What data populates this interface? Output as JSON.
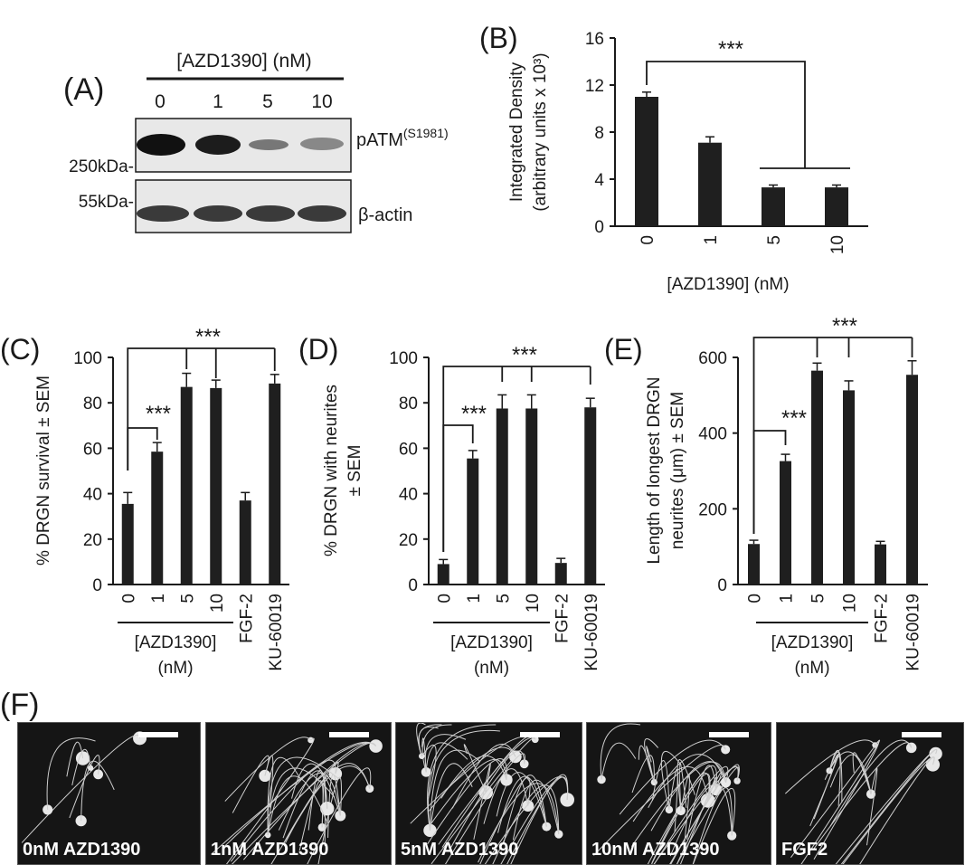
{
  "panels": {
    "A": {
      "letter": "(A)",
      "header": "[AZD1390] (nM)",
      "lanes": [
        "0",
        "1",
        "5",
        "10"
      ],
      "blots": [
        {
          "marker": "250kDa-",
          "label": "pATM",
          "label_sup": "(S1981)"
        },
        {
          "marker": "55kDa-",
          "label": "β-actin"
        }
      ]
    },
    "F": {
      "letter": "(F)",
      "captions": [
        "0nM AZD1390",
        "1nM AZD1390",
        "5nM AZD1390",
        "10nM AZD1390",
        "FGF2"
      ]
    }
  },
  "chart_data": [
    {
      "panel": "(B)",
      "type": "bar",
      "categories": [
        "0",
        "1",
        "5",
        "10"
      ],
      "values": [
        11.0,
        7.1,
        3.3,
        3.3
      ],
      "errors": [
        0.4,
        0.5,
        0.2,
        0.2
      ],
      "ylabel": "Integrated Density (arbitrary units x 10³)",
      "ylabel_lines": [
        "Integrated Density",
        "(arbitrary units x 10³)"
      ],
      "xlabel": "[AZD1390] (nM)",
      "yticks": [
        "0",
        "4",
        "8",
        "12",
        "16"
      ],
      "ylim": [
        0,
        16
      ],
      "significance": [
        "***"
      ]
    },
    {
      "panel": "(C)",
      "type": "bar",
      "categories": [
        "0",
        "1",
        "5",
        "10",
        "FGF-2",
        "KU-60019"
      ],
      "values": [
        35.5,
        58.5,
        87,
        86.5,
        37,
        88.5
      ],
      "errors": [
        5,
        4,
        6,
        3.5,
        3.5,
        4
      ],
      "ylabel": "% DRGN survival ± SEM",
      "ylabel_lines": [
        "% DRGN survival ± SEM"
      ],
      "group_label": [
        "[AZD1390]",
        "(nM)"
      ],
      "yticks": [
        "0",
        "20",
        "40",
        "60",
        "80",
        "100"
      ],
      "ylim": [
        0,
        100
      ],
      "significance": [
        "***",
        "***"
      ]
    },
    {
      "panel": "(D)",
      "type": "bar",
      "categories": [
        "0",
        "1",
        "5",
        "10",
        "FGF-2",
        "KU-60019"
      ],
      "values": [
        9,
        55.5,
        77.5,
        77.5,
        9.5,
        78
      ],
      "errors": [
        2,
        3.5,
        6,
        6,
        2,
        4
      ],
      "ylabel": "% DRGN with neurites ± SEM",
      "ylabel_lines": [
        "% DRGN with neurites",
        "± SEM"
      ],
      "group_label": [
        "[AZD1390]",
        "(nM)"
      ],
      "yticks": [
        "0",
        "20",
        "40",
        "60",
        "80",
        "100"
      ],
      "ylim": [
        0,
        100
      ],
      "significance": [
        "***",
        "***"
      ]
    },
    {
      "panel": "(E)",
      "type": "bar",
      "categories": [
        "0",
        "1",
        "5",
        "10",
        "FGF-2",
        "KU-60019"
      ],
      "values": [
        107,
        326,
        565,
        513,
        106,
        554
      ],
      "errors": [
        10,
        18,
        20,
        25,
        8,
        37
      ],
      "ylabel": "Length of longest DRGN neurites (μm) ± SEM",
      "ylabel_lines": [
        "Length of longest DRGN",
        "neurites (μm) ± SEM"
      ],
      "group_label": [
        "[AZD1390]",
        "(nM)"
      ],
      "yticks": [
        "0",
        "200",
        "400",
        "600"
      ],
      "ylim": [
        0,
        600
      ],
      "significance": [
        "***",
        "***"
      ]
    }
  ]
}
